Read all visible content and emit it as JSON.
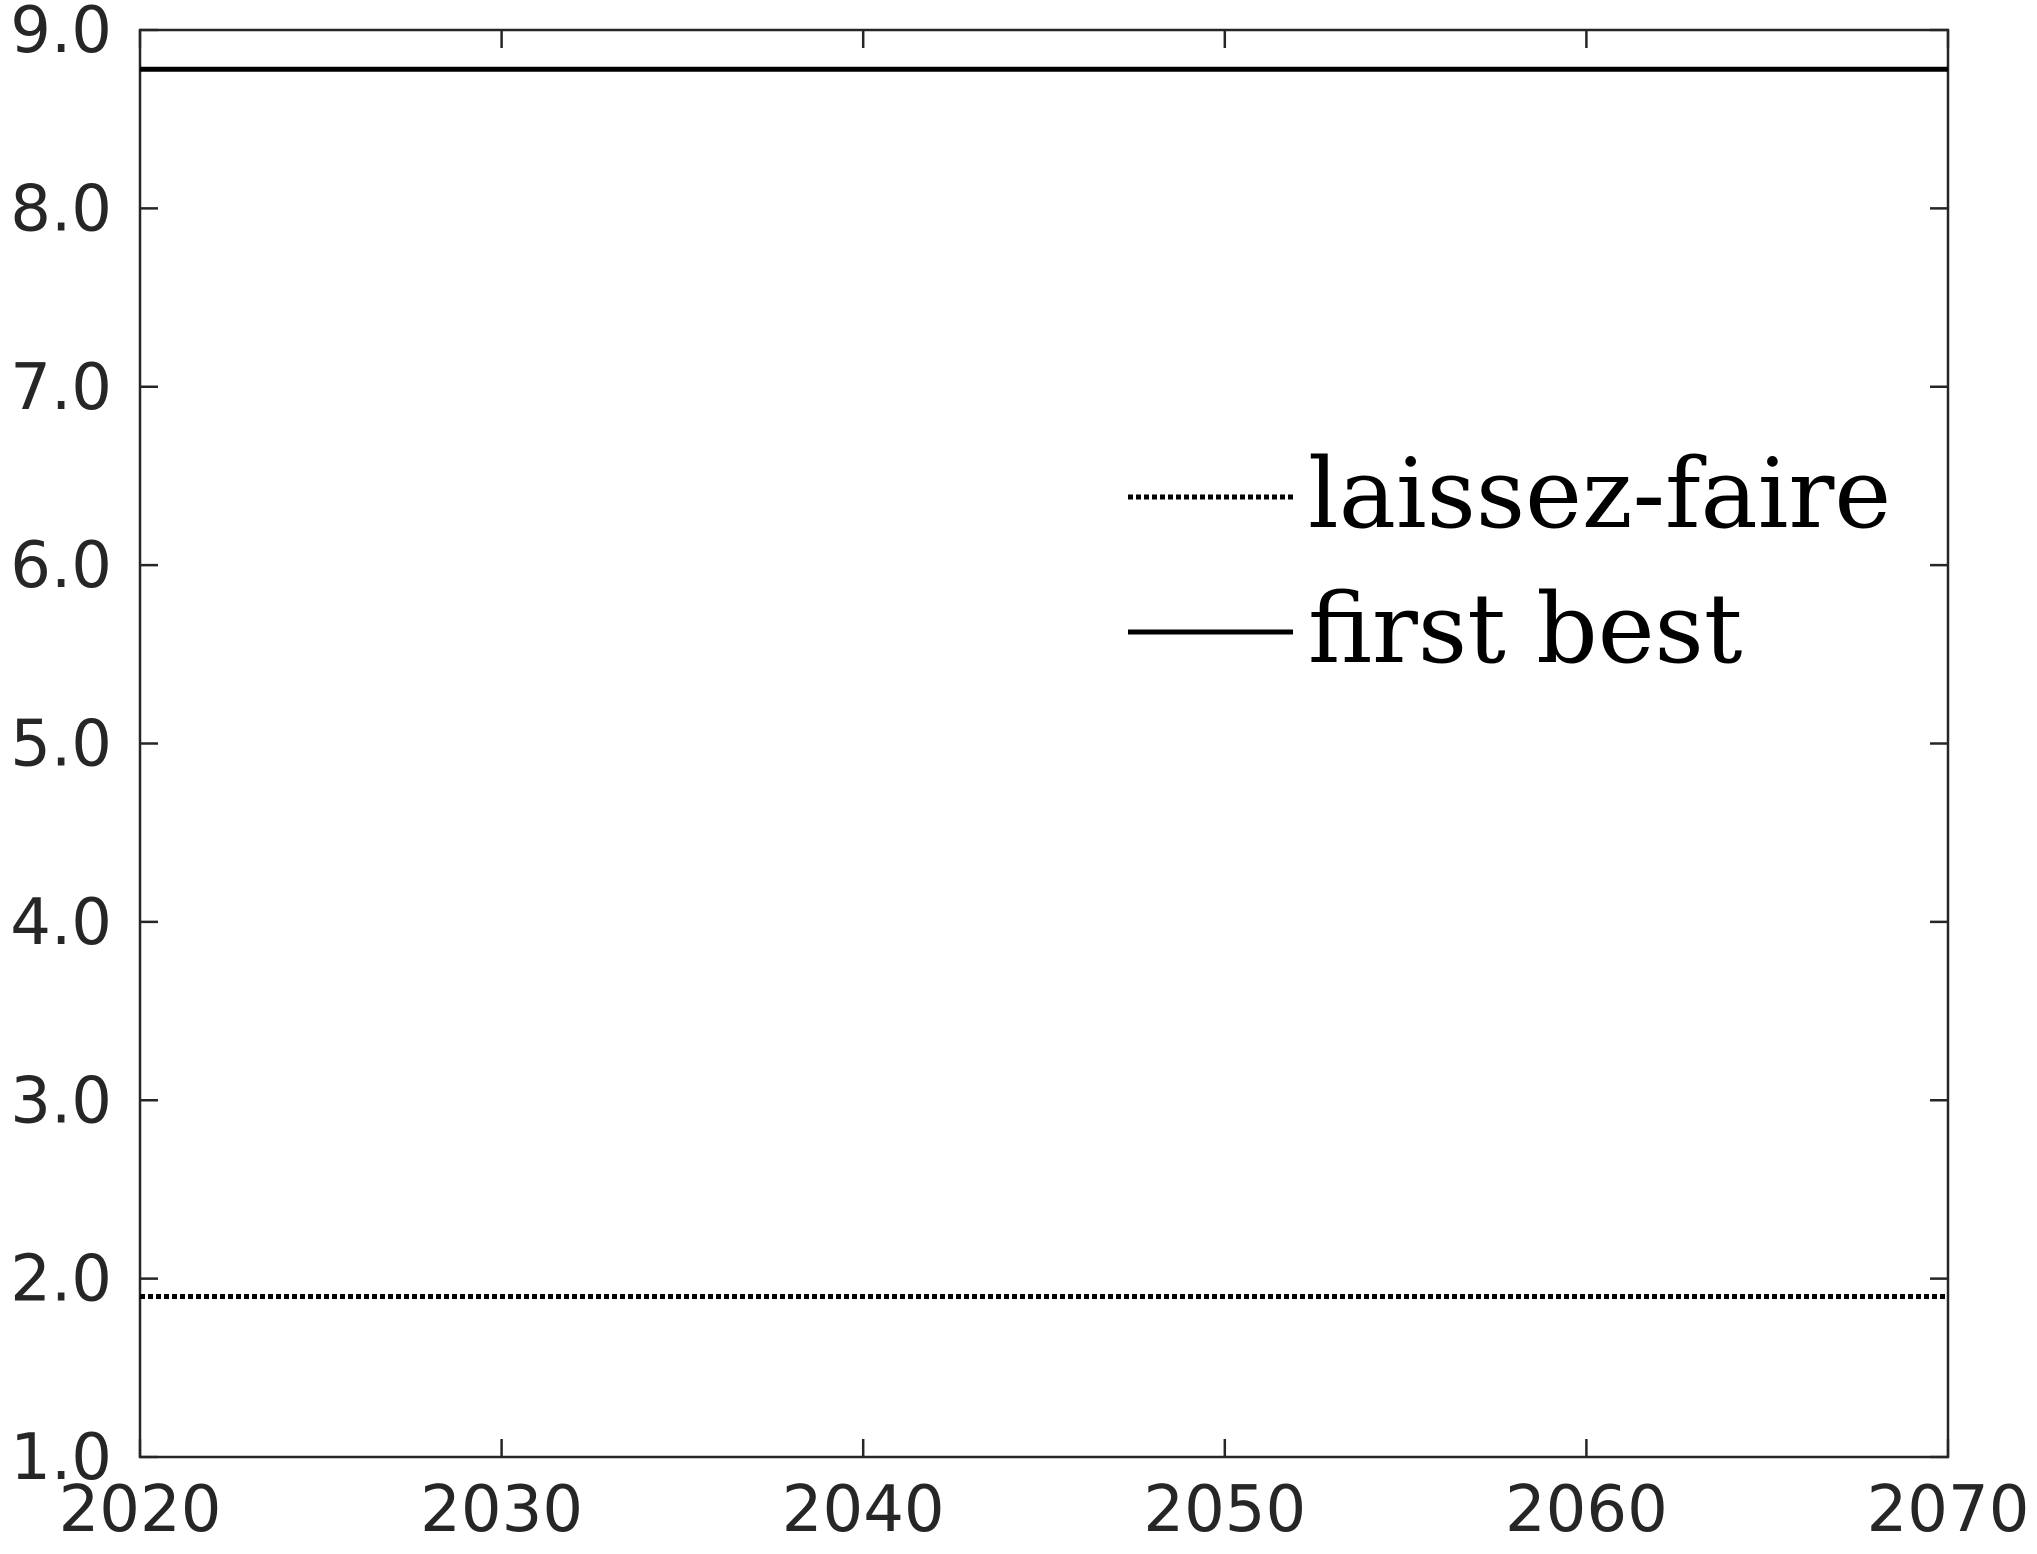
{
  "chart_data": {
    "type": "line",
    "title": "",
    "xlabel": "",
    "ylabel": "",
    "xlim": [
      2020,
      2070
    ],
    "ylim": [
      1.0,
      9.0
    ],
    "x_ticks": [
      2020,
      2030,
      2040,
      2050,
      2060,
      2070
    ],
    "x_tick_labels": [
      "2020",
      "2030",
      "2040",
      "2050",
      "2060",
      "2070"
    ],
    "y_ticks": [
      1.0,
      2.0,
      3.0,
      4.0,
      5.0,
      6.0,
      7.0,
      8.0,
      9.0
    ],
    "y_tick_labels": [
      "1.0",
      "2.0",
      "3.0",
      "4.0",
      "5.0",
      "6.0",
      "7.0",
      "8.0",
      "9.0"
    ],
    "grid": false,
    "legend_position": "upper-right-center",
    "series": [
      {
        "name": "laissez-faire",
        "style": "dotted",
        "color": "#000000",
        "x": [
          2020,
          2070
        ],
        "y": [
          1.9,
          1.9
        ]
      },
      {
        "name": "first best",
        "style": "solid",
        "color": "#000000",
        "x": [
          2020,
          2070
        ],
        "y": [
          8.78,
          8.78
        ]
      }
    ]
  }
}
